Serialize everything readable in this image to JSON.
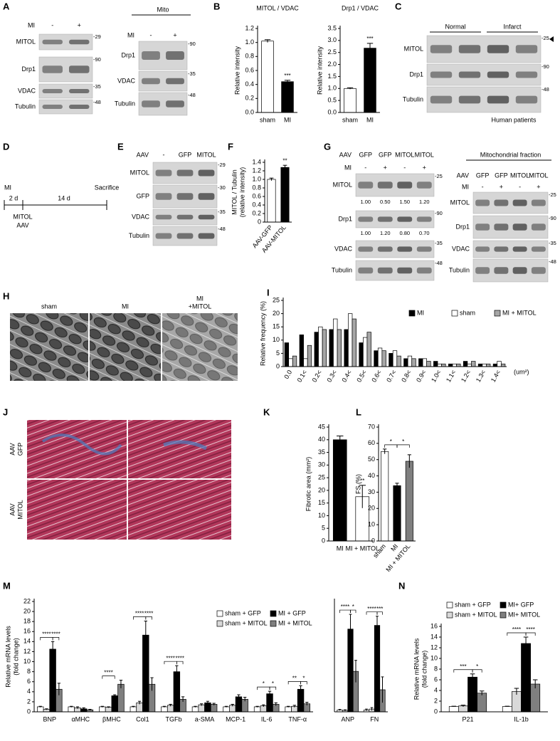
{
  "figure": {
    "letters": [
      "A",
      "B",
      "C",
      "D",
      "E",
      "F",
      "G",
      "H",
      "I",
      "J",
      "K",
      "L",
      "M",
      "N"
    ],
    "A": {
      "lanes_label": "MI",
      "lanes": [
        "-",
        "+"
      ],
      "rows": [
        {
          "label": "MITOL",
          "marker": "-29"
        },
        {
          "label": "Drp1",
          "marker": "-90"
        },
        {
          "label": "VDAC",
          "marker": "-35"
        },
        {
          "label": "Tubulin",
          "marker": "-48"
        }
      ]
    },
    "A_mito": {
      "title": "Mito",
      "lanes_label": "MI",
      "lanes": [
        "-",
        "+"
      ],
      "rows": [
        {
          "label": "Drp1",
          "marker": "-90"
        },
        {
          "label": "VDAC",
          "marker": "-35"
        },
        {
          "label": "Tubulin",
          "marker": "-48"
        }
      ]
    },
    "C": {
      "groups": [
        "Normal",
        "Infarct"
      ],
      "rows": [
        {
          "label": "MITOL",
          "marker": "-25"
        },
        {
          "label": "Drp1",
          "marker": "-90"
        },
        {
          "label": "Tubulin",
          "marker": "-48"
        }
      ],
      "caption": "Human patients"
    },
    "D": {
      "event": "MI",
      "interval1": "2 d",
      "interval2": "14 d",
      "end": "Sacrifice",
      "treatment": [
        "MITOL",
        "AAV"
      ]
    },
    "E": {
      "lanes_label": "AAV",
      "lanes": [
        "-",
        "GFP",
        "MITOL"
      ],
      "rows": [
        {
          "label": "MITOL",
          "marker": "-29"
        },
        {
          "label": "GFP",
          "marker": "-30"
        },
        {
          "label": "VDAC",
          "marker": "-35"
        },
        {
          "label": "Tubulin",
          "marker": "-48"
        }
      ]
    },
    "G": {
      "lanes_label": "AAV",
      "lanes": [
        "GFP",
        "GFP",
        "MITOL",
        "MITOL"
      ],
      "lanes2_label": "MI",
      "lanes2": [
        "-",
        "+",
        "-",
        "+"
      ],
      "rows": [
        {
          "label": "MITOL",
          "marker": "-25",
          "quant": [
            "1.00",
            "0.50",
            "1.50",
            "1.20"
          ]
        },
        {
          "label": "Drp1",
          "marker": "-90",
          "quant": [
            "1.00",
            "1.20",
            "0.80",
            "0.70"
          ]
        },
        {
          "label": "VDAC",
          "marker": "-35"
        },
        {
          "label": "Tubulin",
          "marker": "-48"
        }
      ]
    },
    "G_mito": {
      "title": "Mitochondrial fraction",
      "lanes_label": "AAV",
      "lanes": [
        "GFP",
        "GFP",
        "MITOL",
        "MITOL"
      ],
      "lanes2_label": "MI",
      "lanes2": [
        "-",
        "+",
        "-",
        "+"
      ],
      "rows": [
        {
          "label": "MITOL",
          "marker": "-25"
        },
        {
          "label": "Drp1",
          "marker": "-90"
        },
        {
          "label": "VDAC",
          "marker": "-35"
        },
        {
          "label": "Tubulin",
          "marker": "-48"
        }
      ]
    },
    "H": {
      "labels": [
        [
          "sham"
        ],
        [
          "MI"
        ],
        [
          "MI",
          "+MITOL"
        ]
      ]
    },
    "J": {
      "labels": [
        [
          "AAV",
          "GFP"
        ],
        [
          "AAV",
          "MITOL"
        ]
      ]
    }
  },
  "chart_data": [
    {
      "type": "bar",
      "title": "MITOL / VDAC",
      "ylabel": "Relative intensity",
      "categories": [
        "sham",
        "MI"
      ],
      "values": [
        1.02,
        0.44
      ],
      "errors": [
        0.02,
        0.02
      ],
      "colors": [
        "#ffffff",
        "#000000"
      ],
      "ylim": [
        0,
        1.2
      ],
      "yticks": [
        {
          "value": 0,
          "label": "0.0"
        },
        0.2,
        0.4,
        0.6,
        0.8,
        {
          "value": 1,
          "label": "1.0"
        },
        1.2
      ],
      "annotations": [
        {
          "category": "MI",
          "labels": [
            "***"
          ]
        }
      ]
    },
    {
      "type": "bar",
      "title": "Drp1 / VDAC",
      "ylabel": "Relative intensity",
      "categories": [
        "sham",
        "MI"
      ],
      "values": [
        1.0,
        2.68
      ],
      "errors": [
        0.03,
        0.2
      ],
      "colors": [
        "#ffffff",
        "#000000"
      ],
      "ylim": [
        0,
        3.5
      ],
      "yticks": [
        {
          "value": 0,
          "label": "0.0"
        },
        0.5,
        {
          "value": 1,
          "label": "1.0"
        },
        1.5,
        {
          "value": 2,
          "label": "2.0"
        },
        2.5,
        {
          "value": 3,
          "label": "3.0"
        },
        3.5
      ],
      "annotations": [
        {
          "category": "MI",
          "labels": [
            "***"
          ]
        }
      ]
    },
    {
      "type": "bar",
      "ylabel": [
        "MITOL / Tubulin",
        "(relative intensity)"
      ],
      "categories": [
        "AAV-GFP",
        "AAV-MITOL"
      ],
      "values": [
        1.0,
        1.28
      ],
      "errors": [
        0.03,
        0.05
      ],
      "colors": [
        "#ffffff",
        "#000000"
      ],
      "ylim": [
        0,
        1.4
      ],
      "yticks": [
        0,
        0.2,
        0.4,
        0.6,
        0.8,
        {
          "value": 1,
          "label": "1.0"
        },
        1.2,
        1.4
      ],
      "annotations": [
        {
          "category": "AAV-MITOL",
          "labels": [
            "**"
          ]
        }
      ]
    },
    {
      "type": "bar",
      "ylabel": "Relative frequency (%)",
      "xlabel": "(um²)",
      "categories": [
        "0.0",
        "0.1<",
        "0.2<",
        "0.3<",
        "0.4<",
        "0.5<",
        "0.6<",
        "0.7<",
        "0.8<",
        "0.9<",
        "1.0<",
        "1.1<",
        "1.2<",
        "1.3<",
        "1.4<"
      ],
      "series": [
        {
          "name": "MI",
          "color": "#000000",
          "values": [
            9,
            12,
            13,
            14,
            14,
            9,
            6,
            5,
            3,
            3,
            2,
            1,
            2,
            1,
            1
          ]
        },
        {
          "name": "sham",
          "color": "#ffffff",
          "values": [
            3,
            3,
            15,
            18,
            20,
            11,
            7,
            6,
            4,
            3,
            1,
            1,
            1,
            1,
            2
          ]
        },
        {
          "name": "MI + MITOL",
          "color": "#a6a6a6",
          "values": [
            4,
            8,
            14,
            14,
            18,
            13,
            6,
            4,
            3,
            2,
            1,
            1,
            2,
            1,
            1
          ]
        }
      ],
      "ylim": [
        0,
        25
      ],
      "yticks": [
        0,
        5,
        10,
        15,
        20,
        25
      ]
    },
    {
      "type": "bar",
      "ylabel": "Fibrotic area (mm²)",
      "categories": [
        "MI",
        "MI + MITOL"
      ],
      "values": [
        40,
        17.5
      ],
      "errors": [
        1.5,
        4.5
      ],
      "colors": [
        "#000000",
        "#ffffff"
      ],
      "ylim": [
        0,
        45
      ],
      "yticks": [
        0,
        5,
        10,
        15,
        20,
        25,
        30,
        35,
        40,
        45
      ],
      "annotations": [
        {
          "category": "MI + MITOL",
          "labels": [
            "**"
          ]
        }
      ]
    },
    {
      "type": "bar",
      "ylabel": "FS (%)",
      "categories": [
        "sham",
        "MI",
        "MI + MITOL"
      ],
      "values": [
        55,
        34,
        49
      ],
      "errors": [
        1.5,
        1.5,
        4
      ],
      "colors": [
        "#ffffff",
        "#000000",
        "#7f7f7f"
      ],
      "ylim": [
        0,
        70
      ],
      "yticks": [
        0,
        10,
        20,
        30,
        40,
        50,
        60,
        70
      ],
      "annotations": [
        {
          "category": "MI",
          "labels": [
            "*",
            "*"
          ]
        }
      ]
    },
    {
      "type": "bar",
      "ylabel": [
        "Relative mRNA levels",
        "(fold change)"
      ],
      "categories": [
        "BNP",
        "αMHC",
        "βMHC",
        "Col1",
        "TGFb",
        "a-SMA",
        "MCP-1",
        "IL-6",
        "TNF-α"
      ],
      "series": [
        {
          "name": "sham + GFP",
          "color": "#ffffff",
          "values": [
            1,
            1,
            1,
            1,
            1,
            1,
            1,
            1,
            1
          ],
          "errors": [
            0.1,
            0.1,
            0.1,
            0.1,
            0.1,
            0.1,
            0.1,
            0.1,
            0.1
          ]
        },
        {
          "name": "sham + MITOL",
          "color": "#d9d9d9",
          "values": [
            0.5,
            0.8,
            0.9,
            1.8,
            1.3,
            1.4,
            1.3,
            1.2,
            1.1
          ],
          "errors": [
            0.1,
            0.2,
            0.1,
            0.3,
            0.2,
            0.2,
            0.2,
            0.2,
            0.2
          ]
        },
        {
          "name": "MI + GFP",
          "color": "#000000",
          "values": [
            12.5,
            0.6,
            3.2,
            15.3,
            8,
            1.8,
            3,
            3.6,
            4.5
          ],
          "errors": [
            1.5,
            0.2,
            0.2,
            2.8,
            1.2,
            0.3,
            0.4,
            0.5,
            0.7
          ]
        },
        {
          "name": "MI + MITOL",
          "color": "#7f7f7f",
          "values": [
            4.5,
            0.4,
            5.5,
            5.5,
            2.5,
            1.5,
            2.5,
            1.5,
            1.6
          ],
          "errors": [
            1.2,
            0.1,
            0.8,
            1.3,
            0.5,
            0.2,
            0.4,
            0.3,
            0.3
          ]
        }
      ],
      "ylim": [
        0,
        22
      ],
      "yticks": [
        0,
        2,
        4,
        6,
        8,
        10,
        12,
        14,
        16,
        18,
        20,
        22
      ],
      "annotations": [
        {
          "category": "BNP",
          "labels": [
            "****",
            "****"
          ]
        },
        {
          "category": "βMHC",
          "labels": [
            "****"
          ]
        },
        {
          "category": "Col1",
          "labels": [
            "****",
            "****"
          ]
        },
        {
          "category": "TGFb",
          "labels": [
            "****",
            "****"
          ]
        },
        {
          "category": "IL-6",
          "labels": [
            "*",
            "*"
          ]
        },
        {
          "category": "TNF-α",
          "labels": [
            "**",
            "*"
          ]
        }
      ]
    },
    {
      "type": "bar",
      "categories": [
        "ANP",
        "FN"
      ],
      "series": [
        {
          "color": "#ffffff",
          "values": [
            1,
            1
          ],
          "errors": [
            0.3,
            0.5
          ]
        },
        {
          "color": "#d9d9d9",
          "values": [
            0.8,
            1.5
          ],
          "errors": [
            0.3,
            0.8
          ]
        },
        {
          "color": "#000000",
          "values": [
            45,
            47
          ],
          "errors": [
            8,
            5
          ]
        },
        {
          "color": "#7f7f7f",
          "values": [
            22,
            12
          ],
          "errors": [
            6,
            7
          ]
        }
      ],
      "ylim": [
        0,
        60
      ],
      "annotations": [
        {
          "category": "ANP",
          "labels": [
            "****",
            "*"
          ]
        },
        {
          "category": "FN",
          "labels": [
            "****",
            "***"
          ]
        }
      ]
    },
    {
      "type": "bar",
      "ylabel": [
        "Relative mRNA levels",
        "(fold change)"
      ],
      "categories": [
        "P21",
        "IL-1b"
      ],
      "series": [
        {
          "name": "sham + GFP",
          "color": "#ffffff",
          "values": [
            1,
            1
          ],
          "errors": [
            0.05,
            0.05
          ]
        },
        {
          "name": "sham + MITOL",
          "color": "#d9d9d9",
          "values": [
            1.1,
            3.8
          ],
          "errors": [
            0.15,
            0.6
          ]
        },
        {
          "name": "MI+ GFP",
          "color": "#000000",
          "values": [
            6.5,
            12.8
          ],
          "errors": [
            0.6,
            1.2
          ]
        },
        {
          "name": "MI+ MITOL",
          "color": "#7f7f7f",
          "values": [
            3.5,
            5.2
          ],
          "errors": [
            0.4,
            0.8
          ]
        }
      ],
      "ylim": [
        0,
        16
      ],
      "yticks": [
        0,
        2,
        4,
        6,
        8,
        10,
        12,
        14,
        16
      ],
      "annotations": [
        {
          "category": "P21",
          "labels": [
            "***",
            "*"
          ]
        },
        {
          "category": "IL-1b",
          "labels": [
            "****",
            "****"
          ]
        }
      ]
    }
  ]
}
